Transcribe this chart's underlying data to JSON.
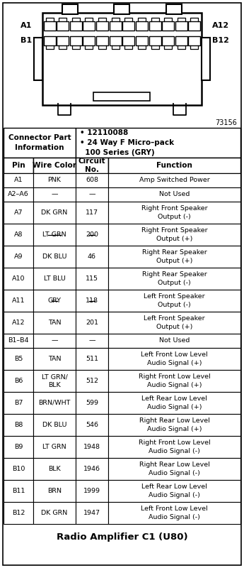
{
  "title": "Radio Amplifier C1 (U80)",
  "connector_info_label": "Connector Part\nInformation",
  "connector_info_value": "• 12110088\n• 24 Way F Micro–pack\n  100 Series (GRY)",
  "diagram_id": "73156",
  "col_headers": [
    "Pin",
    "Wire Color",
    "Circuit\nNo.",
    "Function"
  ],
  "rows": [
    [
      "A1",
      "PNK",
      "608",
      "Amp Switched Power"
    ],
    [
      "A2–A6",
      "—",
      "—",
      "Not Used"
    ],
    [
      "A7",
      "DK GRN",
      "117",
      "Right Front Speaker\nOutput (-)"
    ],
    [
      "A8",
      "LT GRN",
      "200",
      "Right Front Speaker\nOutput (+)"
    ],
    [
      "A9",
      "DK BLU",
      "46",
      "Right Rear Speaker\nOutput (+)"
    ],
    [
      "A10",
      "LT BLU",
      "115",
      "Right Rear Speaker\nOutput (-)"
    ],
    [
      "A11",
      "GRY",
      "118",
      "Left Front Speaker\nOutput (-)"
    ],
    [
      "A12",
      "TAN",
      "201",
      "Left Front Speaker\nOutput (+)"
    ],
    [
      "B1–B4",
      "—",
      "—",
      "Not Used"
    ],
    [
      "B5",
      "TAN",
      "511",
      "Left Front Low Level\nAudio Signal (+)"
    ],
    [
      "B6",
      "LT GRN/\nBLK",
      "512",
      "Right Front Low Level\nAudio Signal (+)"
    ],
    [
      "B7",
      "BRN/WHT",
      "599",
      "Left Rear Low Level\nAudio Signal (+)"
    ],
    [
      "B8",
      "DK BLU",
      "546",
      "Right Rear Low Level\nAudio Signal (+)"
    ],
    [
      "B9",
      "LT GRN",
      "1948",
      "Right Front Low Level\nAudio Signal (-)"
    ],
    [
      "B10",
      "BLK",
      "1946",
      "Right Rear Low Level\nAudio Signal (-)"
    ],
    [
      "B11",
      "BRN",
      "1999",
      "Left Rear Low Level\nAudio Signal (-)"
    ],
    [
      "B12",
      "DK GRN",
      "1947",
      "Left Front Low Level\nAudio Signal (-)"
    ]
  ],
  "strikethrough_rows": [
    3,
    6
  ],
  "bg_color": "#ffffff",
  "border_color": "#000000",
  "text_color": "#000000",
  "font_size": 6.8,
  "header_font_size": 7.5,
  "fig_w": 3.45,
  "fig_h": 8.0,
  "dpi": 100
}
